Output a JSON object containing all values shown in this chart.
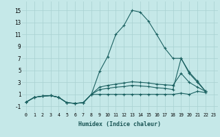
{
  "xlabel": "Humidex (Indice chaleur)",
  "background_color": "#c5e8e8",
  "grid_color": "#a8d0d0",
  "line_color": "#1a6060",
  "xlim": [
    -0.5,
    23.5
  ],
  "ylim": [
    -2.0,
    16.5
  ],
  "xticks": [
    0,
    1,
    2,
    3,
    4,
    5,
    6,
    7,
    8,
    9,
    10,
    11,
    12,
    13,
    14,
    15,
    16,
    17,
    18,
    19,
    20,
    21,
    22,
    23
  ],
  "yticks": [
    -1,
    1,
    3,
    5,
    7,
    9,
    11,
    13,
    15
  ],
  "x_vals": [
    0,
    1,
    2,
    3,
    4,
    5,
    6,
    7,
    8,
    9,
    10,
    11,
    12,
    13,
    14,
    15,
    16,
    17,
    18,
    19,
    20,
    21,
    22
  ],
  "series": [
    [
      -0.3,
      0.5,
      0.7,
      0.8,
      0.5,
      -0.4,
      -0.5,
      -0.4,
      1.0,
      4.8,
      7.3,
      11.0,
      12.5,
      15.0,
      14.7,
      13.2,
      11.0,
      8.7,
      7.0,
      7.0,
      4.5,
      3.0,
      1.5
    ],
    [
      -0.3,
      0.5,
      0.7,
      0.8,
      0.5,
      -0.4,
      -0.5,
      -0.4,
      1.0,
      2.2,
      2.5,
      2.7,
      2.9,
      3.1,
      3.0,
      2.9,
      2.7,
      2.6,
      2.5,
      4.5,
      3.0,
      2.2,
      1.5
    ],
    [
      -0.3,
      0.5,
      0.7,
      0.8,
      0.5,
      -0.4,
      -0.5,
      -0.4,
      1.0,
      1.8,
      2.0,
      2.2,
      2.3,
      2.5,
      2.4,
      2.3,
      2.1,
      2.0,
      1.8,
      7.0,
      4.7,
      3.2,
      1.5
    ],
    [
      -0.3,
      0.5,
      0.7,
      0.8,
      0.5,
      -0.4,
      -0.5,
      -0.4,
      1.0,
      1.0,
      1.0,
      1.0,
      1.0,
      1.0,
      1.0,
      1.0,
      1.0,
      1.0,
      1.0,
      1.2,
      1.0,
      1.5,
      1.3
    ]
  ]
}
